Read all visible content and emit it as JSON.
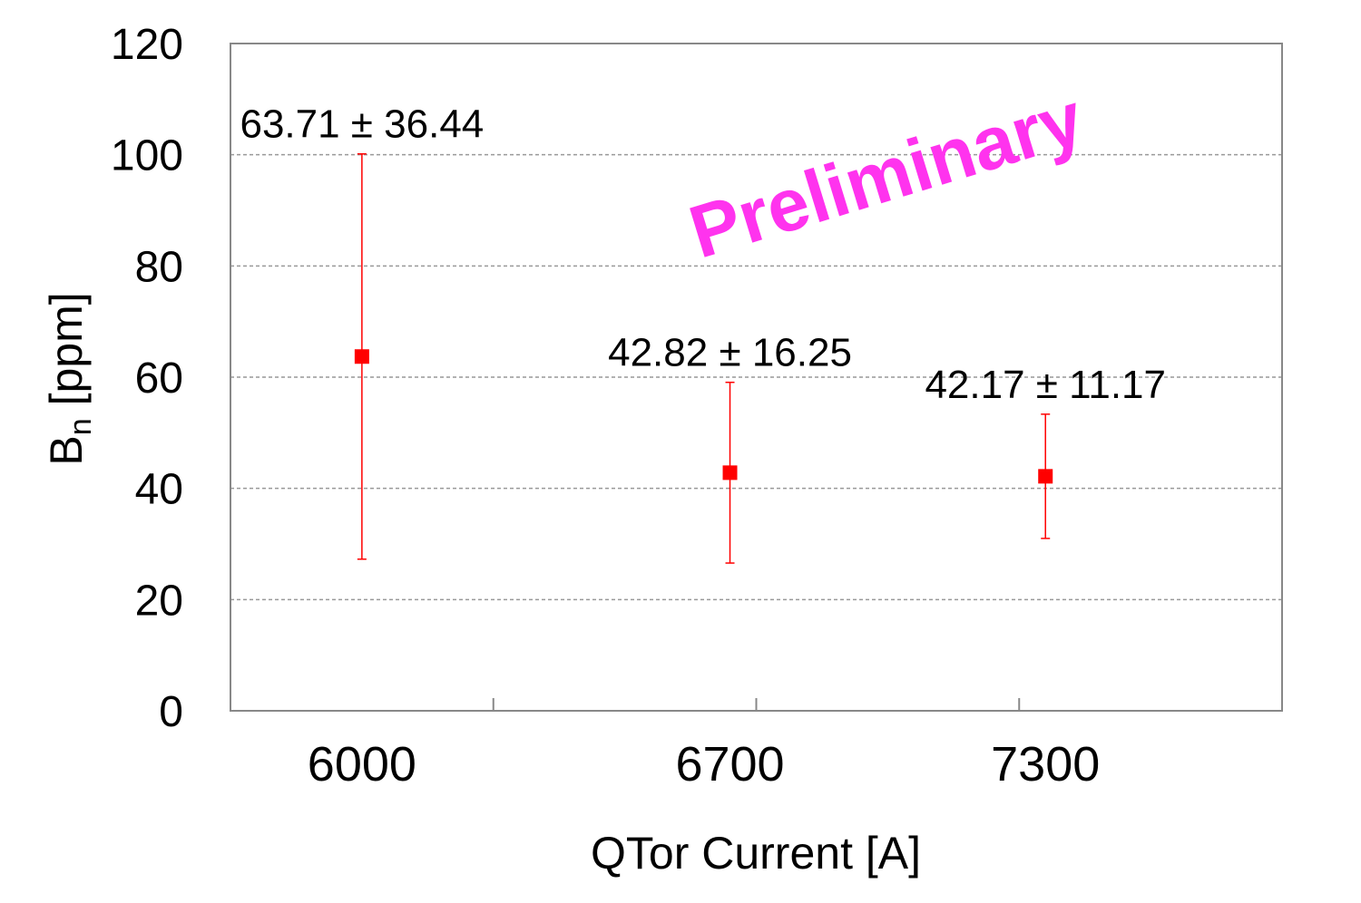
{
  "chart_data": {
    "type": "scatter",
    "title": "",
    "xlabel": "QTor Current [A]",
    "ylabel_main": "B",
    "ylabel_sub": "n",
    "ylabel_unit": " [ppm]",
    "categories": [
      "6000",
      "6700",
      "7300"
    ],
    "x_slots": [
      1,
      2.4,
      3.6
    ],
    "x_divisions": 4,
    "values": [
      63.71,
      42.82,
      42.17
    ],
    "errors": [
      36.44,
      16.25,
      11.17
    ],
    "data_labels": [
      "63.71 ± 36.44",
      "42.82 ± 16.25",
      "42.17 ± 11.17"
    ],
    "ylim": [
      0,
      120
    ],
    "yticks": [
      0,
      20,
      40,
      60,
      80,
      100,
      120
    ],
    "grid": true,
    "legend": "none",
    "annotation": "Preliminary",
    "colors": {
      "marker": "#ff0000",
      "errorbar": "#ff0000",
      "annotation": "#ff33ee",
      "grid": "#999999",
      "axis": "#888888"
    }
  }
}
